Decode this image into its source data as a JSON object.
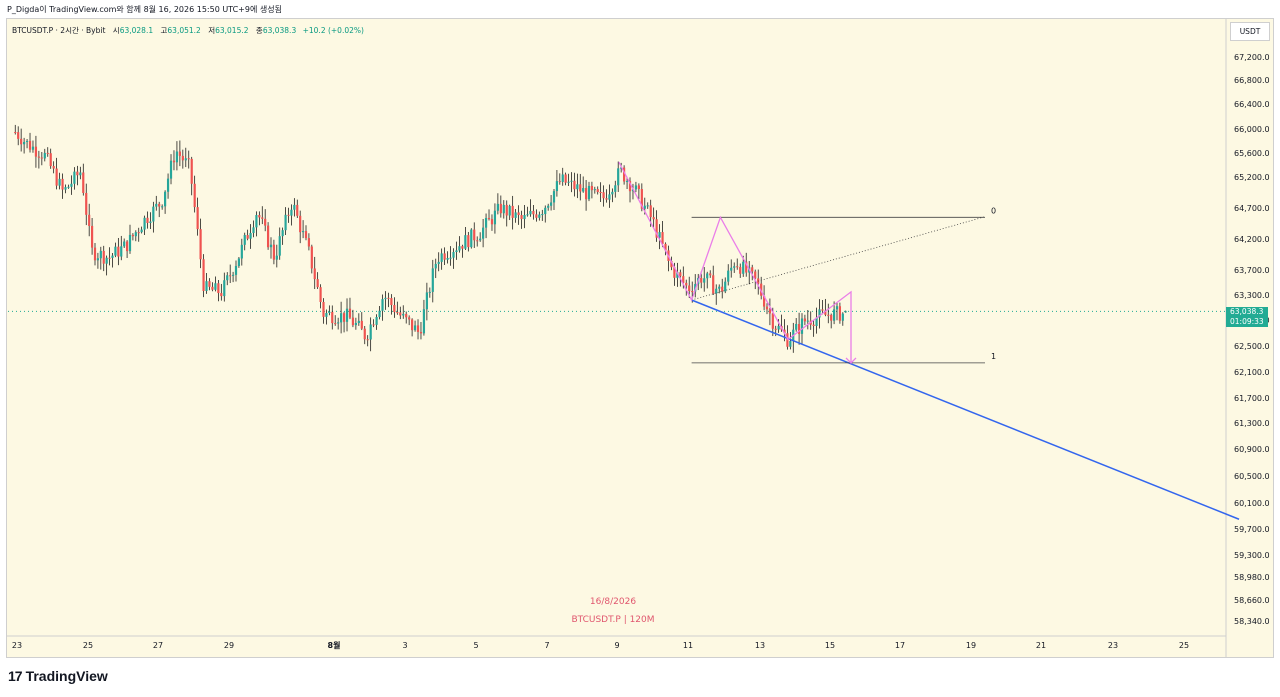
{
  "header": {
    "publish_line": "P_Digda이 TradingView.com와 함께 8월 16, 2026 15:50 UTC+9에 생성됨"
  },
  "legend": {
    "symbol": "BTCUSDT.P · 2시간 · Bybit",
    "open_label": "시",
    "open": "63,028.1",
    "high_label": "고",
    "high": "63,051.2",
    "low_label": "저",
    "low": "63,015.2",
    "close_label": "종",
    "close": "63,038.3",
    "change": "+10.2 (+0.02%)"
  },
  "price_axis": {
    "currency": "USDT",
    "current_price": "63,038.3",
    "countdown": "01:09:33"
  },
  "watermark": {
    "date": "16/8/2026",
    "symbol_interval": "BTCUSDT.P | 120M"
  },
  "brand": {
    "logo": "17",
    "name": "TradingView"
  },
  "colors": {
    "up": "#26a69a",
    "down": "#ef5350",
    "trend_line": "#3366ee",
    "harmonic": "#ea7ee8",
    "price_line": "#22ab94",
    "background": "#fdf9e3"
  },
  "chart_data": {
    "type": "candlestick",
    "y_ticks": [
      67200,
      66800,
      66400,
      66000,
      65600,
      65200,
      64700,
      64200,
      63700,
      63300,
      62900,
      62500,
      62100,
      61700,
      61300,
      60900,
      60500,
      60100,
      59700,
      59300,
      58980,
      58660,
      58340
    ],
    "y_tick_labels": [
      "67,200.0",
      "66,800.0",
      "66,400.0",
      "66,000.0",
      "65,600.0",
      "65,200.0",
      "64,700.0",
      "64,200.0",
      "63,700.0",
      "63,300.0",
      "62,900.0",
      "62,500.0",
      "62,100.0",
      "61,700.0",
      "61,300.0",
      "60,900.0",
      "60,500.0",
      "60,100.0",
      "59,700.0",
      "59,300.0",
      "58,980.0",
      "58,660.0",
      "58,340.0"
    ],
    "x_ticks": [
      23,
      25,
      27,
      29,
      "8월",
      3,
      5,
      7,
      9,
      11,
      13,
      15,
      17,
      19,
      21,
      23,
      25
    ],
    "x_tick_labels": [
      "23",
      "25",
      "27",
      "29",
      "8월",
      "3",
      "5",
      "7",
      "9",
      "11",
      "13",
      "15",
      "17",
      "19",
      "21",
      "23",
      "25"
    ],
    "x_range_days": [
      22.9,
      57.55
    ],
    "days_in_july": 31,
    "ylim": [
      58150,
      67450
    ],
    "close_path_anchors": [
      [
        22.95,
        65950
      ],
      [
        23.3,
        65750
      ],
      [
        23.8,
        65550
      ],
      [
        24.3,
        64950
      ],
      [
        24.8,
        65300
      ],
      [
        25.1,
        64000
      ],
      [
        25.6,
        63900
      ],
      [
        26.1,
        64100
      ],
      [
        26.6,
        64500
      ],
      [
        27.1,
        64800
      ],
      [
        27.5,
        65650
      ],
      [
        27.9,
        65350
      ],
      [
        28.3,
        63400
      ],
      [
        28.8,
        63350
      ],
      [
        29.3,
        63950
      ],
      [
        29.8,
        64650
      ],
      [
        30.3,
        63900
      ],
      [
        30.8,
        64800
      ],
      [
        31.3,
        63950
      ],
      [
        31.7,
        63000
      ],
      [
        32.4,
        62950
      ],
      [
        32.9,
        62650
      ],
      [
        33.4,
        63300
      ],
      [
        33.9,
        62950
      ],
      [
        34.4,
        62700
      ],
      [
        34.9,
        63900
      ],
      [
        35.5,
        64100
      ],
      [
        36.1,
        64300
      ],
      [
        36.7,
        64700
      ],
      [
        37.3,
        64500
      ],
      [
        37.9,
        64700
      ],
      [
        38.4,
        65150
      ],
      [
        39.1,
        64950
      ],
      [
        39.6,
        64850
      ],
      [
        40.1,
        65300
      ],
      [
        40.5,
        65000
      ],
      [
        41.0,
        64500
      ],
      [
        41.5,
        63750
      ],
      [
        42.0,
        63400
      ],
      [
        42.4,
        63600
      ],
      [
        42.9,
        63350
      ],
      [
        43.3,
        63850
      ],
      [
        43.9,
        63500
      ],
      [
        44.4,
        62850
      ],
      [
        44.8,
        62600
      ],
      [
        45.3,
        62900
      ],
      [
        46.0,
        63000
      ],
      [
        46.4,
        63000
      ]
    ],
    "last_candle": {
      "open": 63028.1,
      "high": 63051.2,
      "low": 63015.2,
      "close": 63038.3
    },
    "fib_levels": [
      {
        "label": "0",
        "price": 64550,
        "from_day": 42.1,
        "to_day": 50.4
      },
      {
        "label": "1",
        "price": 62240,
        "from_day": 42.1,
        "to_day": 50.4
      }
    ],
    "trend_line": {
      "from": [
        42.1,
        63220
      ],
      "to": [
        57.55,
        59850
      ]
    },
    "dotted_line": {
      "from": [
        42.1,
        63220
      ],
      "to": [
        50.4,
        64560
      ]
    },
    "harmonic_pattern": {
      "points": [
        [
          40.05,
          65450
        ],
        [
          42.1,
          63220
        ],
        [
          42.9,
          64550
        ],
        [
          44.8,
          62600
        ],
        [
          46.6,
          63350
        ],
        [
          46.6,
          62240
        ]
      ],
      "prediction_mark": [
        45.2,
        62200
      ]
    },
    "current_price": 63038.3
  }
}
